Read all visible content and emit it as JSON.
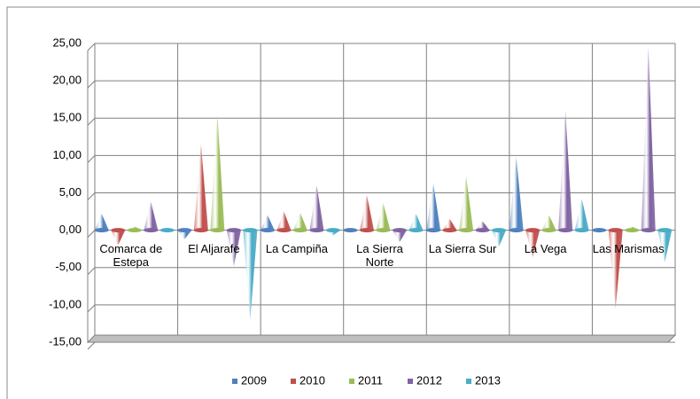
{
  "chart_data": {
    "type": "cone",
    "categories": [
      "Comarca de Estepa",
      "El Aljarafe",
      "La Campiña",
      "La Sierra Norte",
      "La Sierra Sur",
      "La Vega",
      "Las Marismas"
    ],
    "series": [
      {
        "name": "2009",
        "color": "#4f81bd",
        "values": [
          2.2,
          -1.2,
          2.0,
          0.2,
          6.2,
          9.8,
          0.3
        ]
      },
      {
        "name": "2010",
        "color": "#c0504d",
        "values": [
          -2.0,
          11.5,
          2.5,
          4.7,
          1.5,
          -3.6,
          -10.5
        ]
      },
      {
        "name": "2011",
        "color": "#9bbb59",
        "values": [
          0.5,
          15.5,
          2.3,
          3.6,
          7.2,
          2.0,
          0.5
        ]
      },
      {
        "name": "2012",
        "color": "#8064a2",
        "values": [
          3.8,
          -4.8,
          6.0,
          -1.6,
          1.2,
          16.0,
          24.5
        ]
      },
      {
        "name": "2013",
        "color": "#4bacc6",
        "values": [
          0.3,
          -12.0,
          -0.7,
          2.2,
          -2.2,
          4.2,
          -4.3
        ]
      }
    ],
    "ylim": [
      -15,
      25
    ],
    "yticks": [
      {
        "value": -15,
        "label": "-15,00"
      },
      {
        "value": -10,
        "label": "-10,00"
      },
      {
        "value": -5,
        "label": "-5,00"
      },
      {
        "value": 0,
        "label": "0,00"
      },
      {
        "value": 5,
        "label": "5,00"
      },
      {
        "value": 10,
        "label": "10,00"
      },
      {
        "value": 15,
        "label": "15,00"
      },
      {
        "value": 20,
        "label": "20,00"
      },
      {
        "value": 25,
        "label": "25,00"
      }
    ],
    "grid": true,
    "legend": "bottom"
  }
}
